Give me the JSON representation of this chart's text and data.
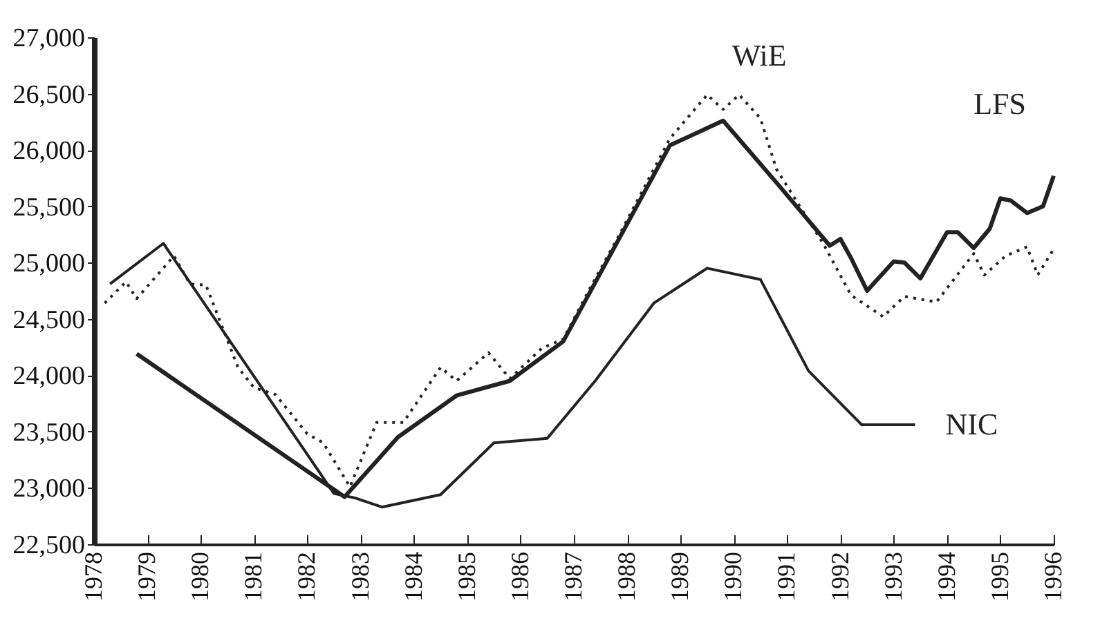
{
  "chart_data": {
    "type": "line",
    "xlim": [
      1978,
      1996
    ],
    "xticks": [
      1978,
      1979,
      1980,
      1981,
      1982,
      1983,
      1984,
      1985,
      1986,
      1987,
      1988,
      1989,
      1990,
      1991,
      1992,
      1993,
      1994,
      1995,
      1996
    ],
    "ylim": [
      22500,
      27000
    ],
    "yticks": [
      {
        "value": 22500,
        "label": "22,500"
      },
      {
        "value": 23000,
        "label": "23,000"
      },
      {
        "value": 23500,
        "label": "23,500"
      },
      {
        "value": 24000,
        "label": "24,000"
      },
      {
        "value": 24500,
        "label": "24,500"
      },
      {
        "value": 25000,
        "label": "25,000"
      },
      {
        "value": 25500,
        "label": "25,500"
      },
      {
        "value": 26000,
        "label": "26,000"
      },
      {
        "value": 26500,
        "label": "26,500"
      },
      {
        "value": 27000,
        "label": "27,000"
      }
    ],
    "grid": false,
    "marker": "none",
    "series": [
      {
        "name": "WiE",
        "color": "#222222",
        "line_style": "dotted",
        "x": [
          1978.2,
          1978.6,
          1978.8,
          1979.5,
          1979.8,
          1980.1,
          1980.7,
          1981.0,
          1981.4,
          1982.0,
          1982.3,
          1982.8,
          1983.3,
          1983.8,
          1984.5,
          1984.8,
          1985.4,
          1985.8,
          1986.4,
          1986.8,
          1987.3,
          1987.8,
          1988.8,
          1989.5,
          1989.8,
          1990.1,
          1990.5,
          1990.8,
          1991.7,
          1992.2,
          1992.8,
          1993.2,
          1993.8,
          1994.5,
          1994.7,
          1995.1,
          1995.5,
          1995.7,
          1996.0
        ],
        "values": [
          24640,
          24830,
          24680,
          25060,
          24810,
          24800,
          24070,
          23890,
          23830,
          23480,
          23400,
          23010,
          23580,
          23580,
          24070,
          23950,
          24200,
          23970,
          24240,
          24320,
          24770,
          25200,
          26100,
          26490,
          26360,
          26490,
          26280,
          25830,
          25150,
          24710,
          24520,
          24700,
          24650,
          25080,
          24890,
          25060,
          25140,
          24890,
          25120
        ]
      },
      {
        "name": "LFS",
        "color": "#222222",
        "line_style": "solid",
        "x": [
          1978.8,
          1982.7,
          1983.7,
          1984.8,
          1985.8,
          1986.8,
          1988.8,
          1989.8,
          1990.8,
          1991.8,
          1992.0,
          1992.2,
          1992.5,
          1993.0,
          1993.2,
          1993.5,
          1994.0,
          1994.2,
          1994.5,
          1994.8,
          1995.0,
          1995.2,
          1995.5,
          1995.8,
          1996.0
        ],
        "values": [
          24190,
          22920,
          23450,
          23820,
          23950,
          24300,
          26040,
          26260,
          25710,
          25150,
          25210,
          25040,
          24750,
          25010,
          25000,
          24860,
          25270,
          25270,
          25130,
          25300,
          25570,
          25550,
          25440,
          25500,
          25770
        ]
      },
      {
        "name": "NIC",
        "color": "#222222",
        "line_style": "solid",
        "x": [
          1978.3,
          1979.3,
          1982.5,
          1982.9,
          1983.4,
          1984.5,
          1985.5,
          1986.5,
          1987.4,
          1988.5,
          1989.5,
          1990.5,
          1991.4,
          1992.4,
          1993.4
        ],
        "values": [
          24810,
          25170,
          22950,
          22910,
          22830,
          22940,
          23400,
          23440,
          23950,
          24640,
          24950,
          24850,
          24040,
          23560,
          23560
        ]
      }
    ]
  }
}
